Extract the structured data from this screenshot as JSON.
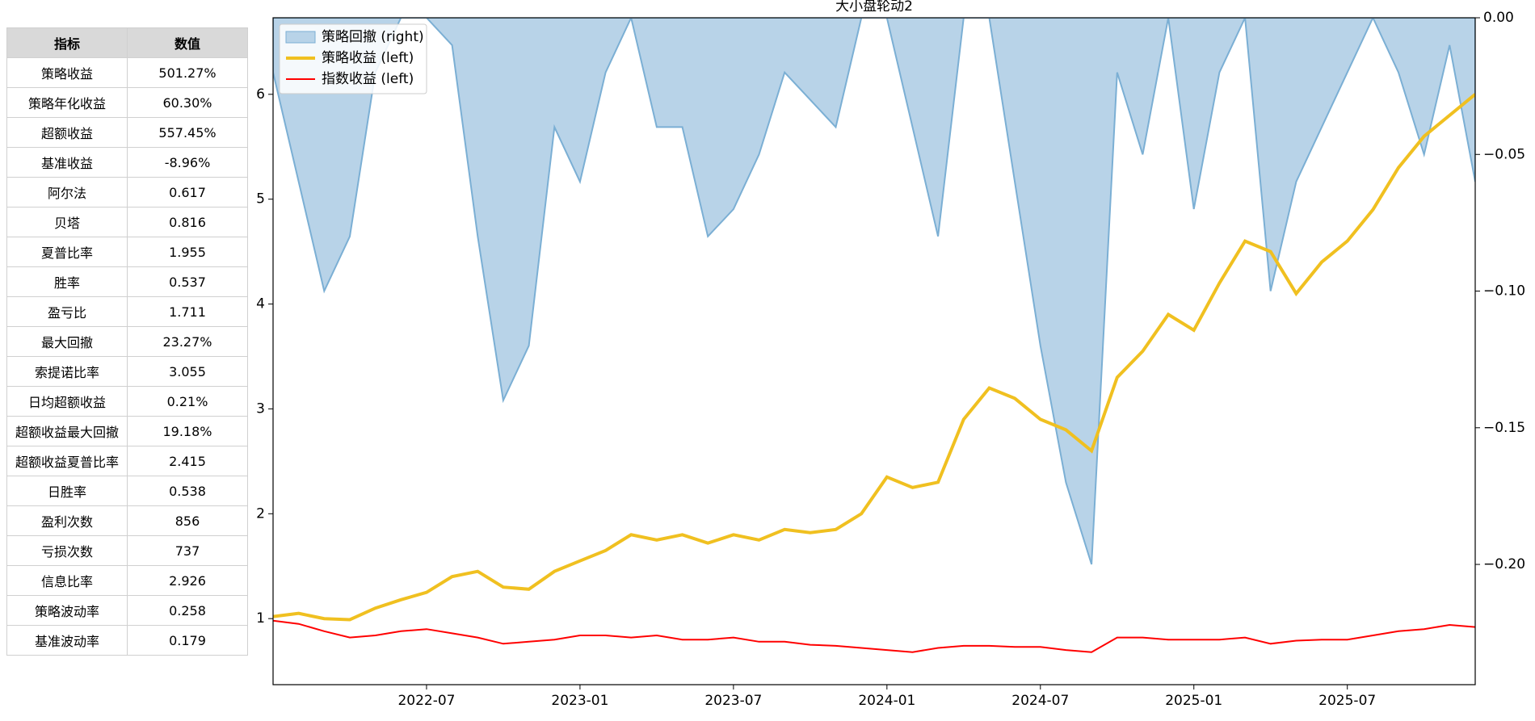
{
  "table": {
    "header": [
      "指标",
      "数值"
    ],
    "rows": [
      [
        "策略收益",
        "501.27%"
      ],
      [
        "策略年化收益",
        "60.30%"
      ],
      [
        "超额收益",
        "557.45%"
      ],
      [
        "基准收益",
        "-8.96%"
      ],
      [
        "阿尔法",
        "0.617"
      ],
      [
        "贝塔",
        "0.816"
      ],
      [
        "夏普比率",
        "1.955"
      ],
      [
        "胜率",
        "0.537"
      ],
      [
        "盈亏比",
        "1.711"
      ],
      [
        "最大回撤",
        "23.27%"
      ],
      [
        "索提诺比率",
        "3.055"
      ],
      [
        "日均超额收益",
        "0.21%"
      ],
      [
        "超额收益最大回撤",
        "19.18%"
      ],
      [
        "超额收益夏普比率",
        "2.415"
      ],
      [
        "日胜率",
        "0.538"
      ],
      [
        "盈利次数",
        "856"
      ],
      [
        "亏损次数",
        "737"
      ],
      [
        "信息比率",
        "2.926"
      ],
      [
        "策略波动率",
        "0.258"
      ],
      [
        "基准波动率",
        "0.179"
      ]
    ]
  },
  "chart_data": {
    "type": "line",
    "title": "大小盘轮动2",
    "legend": "upper left",
    "x": [
      "2022-01",
      "2022-02",
      "2022-03",
      "2022-04",
      "2022-05",
      "2022-06",
      "2022-07",
      "2022-08",
      "2022-09",
      "2022-10",
      "2022-11",
      "2022-12",
      "2023-01",
      "2023-02",
      "2023-03",
      "2023-04",
      "2023-05",
      "2023-06",
      "2023-07",
      "2023-08",
      "2023-09",
      "2023-10",
      "2023-11",
      "2023-12",
      "2024-01",
      "2024-02",
      "2024-03",
      "2024-04",
      "2024-05",
      "2024-06",
      "2024-07",
      "2024-08",
      "2024-09",
      "2024-10",
      "2024-11",
      "2024-12",
      "2025-01",
      "2025-02",
      "2025-03",
      "2025-04",
      "2025-05",
      "2025-06",
      "2025-07",
      "2025-08",
      "2025-09",
      "2025-10",
      "2025-11",
      "2025-12"
    ],
    "xlim": [
      "2022-01",
      "2025-12"
    ],
    "xticks": [
      "2022-07",
      "2023-01",
      "2023-07",
      "2024-01",
      "2024-07",
      "2025-01",
      "2025-07"
    ],
    "ylim": [
      0.37,
      6.73
    ],
    "yticks": [
      1,
      2,
      3,
      4,
      5,
      6
    ],
    "y2lim": [
      -0.244,
      0
    ],
    "y2ticks": [
      {
        "value": 0,
        "label": "0.00"
      },
      {
        "value": -0.05,
        "label": "−0.05"
      },
      {
        "value": -0.1,
        "label": "−0.10"
      },
      {
        "value": -0.15,
        "label": "−0.15"
      },
      {
        "value": -0.2,
        "label": "−0.20"
      }
    ],
    "series": [
      {
        "name": "策略回撤 (right)",
        "type": "area",
        "axis": "y2",
        "color": "#b8d3e8",
        "edge_color": "#7bafd4",
        "values": [
          -0.02,
          -0.06,
          -0.1,
          -0.08,
          -0.02,
          0,
          0,
          -0.01,
          -0.08,
          -0.14,
          -0.12,
          -0.04,
          -0.06,
          -0.02,
          0,
          -0.04,
          -0.04,
          -0.08,
          -0.07,
          -0.05,
          -0.02,
          -0.03,
          -0.04,
          0,
          0,
          -0.04,
          -0.08,
          0,
          0,
          -0.06,
          -0.12,
          -0.17,
          -0.2,
          -0.02,
          -0.05,
          0,
          -0.07,
          -0.02,
          0,
          -0.1,
          -0.06,
          -0.04,
          -0.02,
          0,
          -0.02,
          -0.05,
          -0.01,
          -0.06
        ]
      },
      {
        "name": "策略收益 (left)",
        "type": "line",
        "color": "#f0c020",
        "values": [
          1.02,
          1.05,
          1.0,
          0.99,
          1.1,
          1.18,
          1.25,
          1.4,
          1.45,
          1.3,
          1.28,
          1.45,
          1.55,
          1.65,
          1.8,
          1.75,
          1.8,
          1.72,
          1.8,
          1.75,
          1.85,
          1.82,
          1.85,
          2.0,
          2.35,
          2.25,
          2.3,
          2.9,
          3.2,
          3.1,
          2.9,
          2.8,
          2.6,
          3.3,
          3.55,
          3.9,
          3.75,
          4.2,
          4.6,
          4.5,
          4.1,
          4.4,
          4.6,
          4.9,
          5.3,
          5.6,
          5.8,
          6.0
        ]
      },
      {
        "name": "指数收益 (left)",
        "type": "line",
        "color": "#ff0000",
        "values": [
          0.98,
          0.95,
          0.88,
          0.82,
          0.84,
          0.88,
          0.9,
          0.86,
          0.82,
          0.76,
          0.78,
          0.8,
          0.84,
          0.84,
          0.82,
          0.84,
          0.8,
          0.8,
          0.82,
          0.78,
          0.78,
          0.75,
          0.74,
          0.72,
          0.7,
          0.68,
          0.72,
          0.74,
          0.74,
          0.73,
          0.73,
          0.7,
          0.68,
          0.82,
          0.82,
          0.8,
          0.8,
          0.8,
          0.82,
          0.76,
          0.79,
          0.8,
          0.8,
          0.84,
          0.88,
          0.9,
          0.94,
          0.92
        ]
      }
    ]
  }
}
